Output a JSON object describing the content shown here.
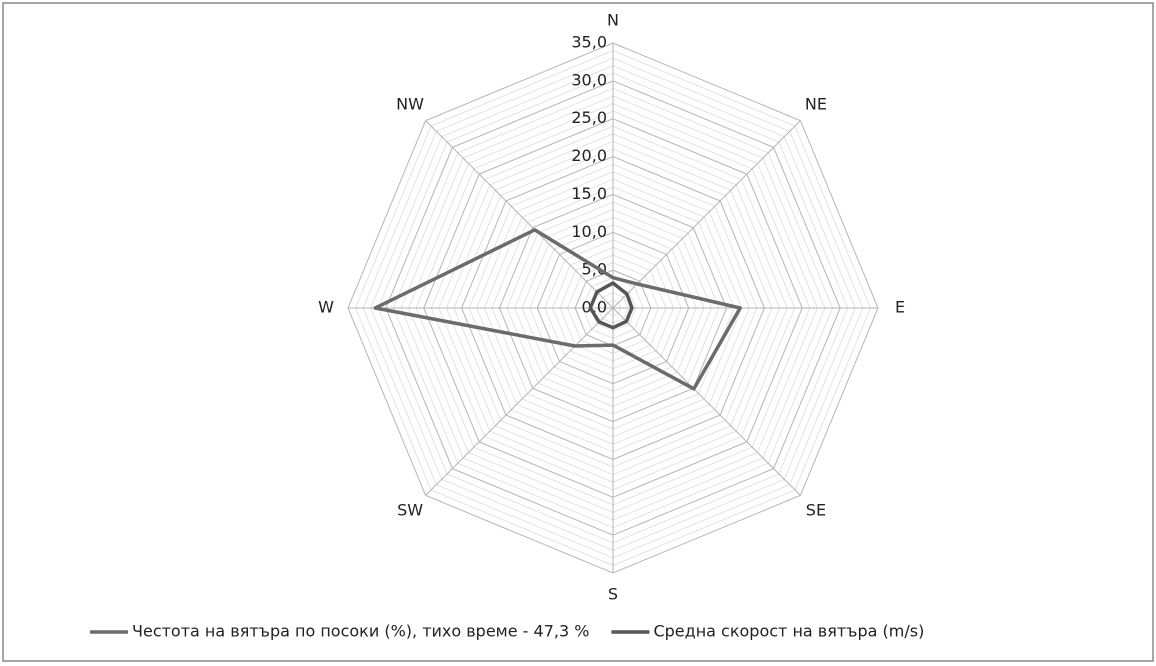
{
  "chart_data": {
    "type": "radar",
    "categories": [
      "N",
      "NE",
      "E",
      "SE",
      "S",
      "SW",
      "W",
      "NW"
    ],
    "series": [
      {
        "name": "Честота на вятъра по посоки (%), тихо време - 47,3 %",
        "color": "#6b6b6b",
        "values": [
          4.0,
          4.5,
          16.8,
          15.1,
          4.9,
          7.1,
          31.4,
          14.6
        ]
      },
      {
        "name": "Средна скорост на вятъра (m/s)",
        "color": "#555555",
        "values": [
          3.3,
          2.6,
          2.5,
          2.5,
          2.6,
          2.6,
          3.0,
          3.0
        ]
      }
    ],
    "ylim": [
      0,
      35
    ],
    "yticks": [
      {
        "value": 0,
        "label": "0,0"
      },
      {
        "value": 5,
        "label": "5,0"
      },
      {
        "value": 10,
        "label": "10,0"
      },
      {
        "value": 15,
        "label": "15,0"
      },
      {
        "value": 20,
        "label": "20,0"
      },
      {
        "value": 25,
        "label": "25,0"
      },
      {
        "value": 30,
        "label": "30,0"
      },
      {
        "value": 35,
        "label": "35,0"
      }
    ],
    "minor_grid_divisions": 5,
    "grid": true,
    "legend": "bottom"
  }
}
